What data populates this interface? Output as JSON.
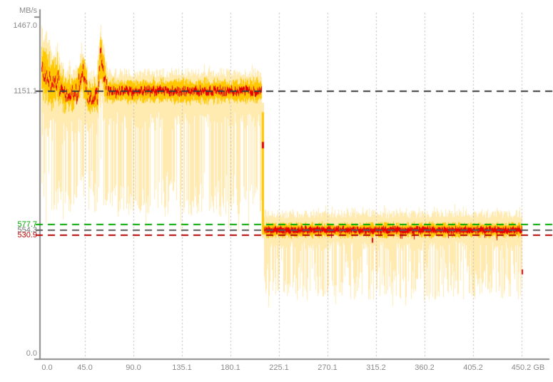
{
  "chart": {
    "ylabel": "MB/s",
    "y_axis_labels": [
      {
        "text": "1467.0",
        "value": 1467.0,
        "color": "#8a8a8a"
      },
      {
        "text": "1151.1",
        "value": 1151.1,
        "color": "#8a8a8a"
      },
      {
        "text": "577.7",
        "value": 577.7,
        "color": "#00a800"
      },
      {
        "text": "554.3",
        "value": 554.3,
        "color": "#707070"
      },
      {
        "text": "530.9",
        "value": 530.9,
        "color": "#c00000"
      },
      {
        "text": "0.0",
        "value": 0.0,
        "color": "#8a8a8a"
      }
    ],
    "x_axis_labels": [
      "0.0",
      "45.0",
      "90.0",
      "135.1",
      "180.1",
      "225.1",
      "270.1",
      "315.2",
      "360.2",
      "405.2",
      "450.2 GB"
    ]
  },
  "chart_data": {
    "type": "area",
    "ylabel": "MB/s",
    "x_unit": "GB",
    "x_range": [
      0,
      450.2
    ],
    "y_range": [
      0,
      1467.0
    ],
    "x_ticks": [
      0.0,
      45.0,
      90.0,
      135.1,
      180.1,
      225.1,
      270.1,
      315.2,
      360.2,
      405.2,
      450.2
    ],
    "grid": "vertical-dotted",
    "reference_lines": [
      {
        "value": 1151.1,
        "color": "#3c3c3c",
        "style": "dashed"
      },
      {
        "value": 577.7,
        "color": "#00a800",
        "style": "dashed"
      },
      {
        "value": 554.3,
        "color": "#5a5a5a",
        "style": "dashed"
      },
      {
        "value": 530.9,
        "color": "#b40000",
        "style": "dashed"
      }
    ],
    "colors": {
      "envelope": "#ffeab0",
      "band": "#ffc800",
      "spread": "#ff9800",
      "average": "#e60000",
      "axis": "#8c8c8c",
      "grid": "#bdbdbd",
      "text": "#8a8a8a",
      "background": "#ffffff"
    },
    "segments": [
      {
        "gb0": 4.6,
        "gb1": 13.9,
        "avg0": 1248,
        "avg1": 1182,
        "jit": 46,
        "band": 88,
        "top": 160,
        "topSpike": 70,
        "topSpikeP": 0.3,
        "bot": 225,
        "spikeP": 0.55,
        "spikeMin": 330,
        "spikeMax": 610,
        "rareP": 0.05,
        "rareMin": 610,
        "rareMax": 680,
        "dipP": 0.05,
        "dip": 60
      },
      {
        "gb0": 13.9,
        "gb1": 19.2,
        "avg0": 1175,
        "avg1": 1205,
        "jit": 42,
        "band": 78,
        "top": 120,
        "topSpike": 45,
        "topSpikeP": 0.22,
        "bot": 205,
        "spikeP": 0.5,
        "spikeMin": 300,
        "spikeMax": 560,
        "rareP": 0.02,
        "rareMin": 580,
        "rareMax": 640,
        "dipP": 0.04,
        "dip": 50
      },
      {
        "gb0": 19.2,
        "gb1": 24.5,
        "avg0": 1198,
        "avg1": 1138,
        "jit": 40,
        "band": 72,
        "top": 112,
        "topSpike": 40,
        "topSpikeP": 0.2,
        "bot": 195,
        "spikeP": 0.5,
        "spikeMin": 300,
        "spikeMax": 545,
        "rareP": 0.02,
        "rareMin": 570,
        "rareMax": 620,
        "dipP": 0.04,
        "dip": 50
      },
      {
        "gb0": 24.5,
        "gb1": 31.1,
        "avg0": 1132,
        "avg1": 1142,
        "jit": 26,
        "band": 56,
        "top": 100,
        "topSpike": 32,
        "topSpikeP": 0.16,
        "bot": 165,
        "spikeP": 0.55,
        "spikeMin": 300,
        "spikeMax": 520,
        "rareP": 0.01,
        "rareMin": 560,
        "rareMax": 600,
        "dipP": 0.03,
        "dip": 40
      },
      {
        "gb0": 31.1,
        "gb1": 37.7,
        "avg0": 1140,
        "avg1": 1148,
        "jit": 26,
        "band": 56,
        "top": 100,
        "topSpike": 32,
        "topSpikeP": 0.16,
        "bot": 165,
        "spikeP": 0.55,
        "spikeMin": 300,
        "spikeMax": 520,
        "rareP": 0.01,
        "rareMin": 560,
        "rareMax": 600,
        "dipP": 0.03,
        "dip": 40
      },
      {
        "gb0": 37.7,
        "gb1": 42.4,
        "avg0": 1152,
        "avg1": 1238,
        "jit": 36,
        "band": 66,
        "top": 92,
        "topSpike": 30,
        "topSpikeP": 0.16,
        "bot": 175,
        "spikeP": 0.5,
        "spikeMin": 300,
        "spikeMax": 520,
        "rareP": 0.01,
        "rareMin": 560,
        "rareMax": 600,
        "dipP": 0.03,
        "dip": 40
      },
      {
        "gb0": 42.4,
        "gb1": 47.0,
        "avg0": 1238,
        "avg1": 1148,
        "jit": 36,
        "band": 66,
        "top": 92,
        "topSpike": 30,
        "topSpikeP": 0.16,
        "bot": 175,
        "spikeP": 0.5,
        "spikeMin": 300,
        "spikeMax": 520,
        "rareP": 0.01,
        "rareMin": 560,
        "rareMax": 600,
        "dipP": 0.03,
        "dip": 40
      },
      {
        "gb0": 47.0,
        "gb1": 56.3,
        "avg0": 1126,
        "avg1": 1126,
        "jit": 26,
        "band": 56,
        "top": 96,
        "topSpike": 26,
        "topSpikeP": 0.15,
        "bot": 160,
        "spikeP": 0.5,
        "spikeMin": 280,
        "spikeMax": 500,
        "rareP": 0.01,
        "rareMin": 540,
        "rareMax": 580,
        "dipP": 0.03,
        "dip": 40
      },
      {
        "gb0": 56.3,
        "gb1": 59.6,
        "avg0": 1160,
        "avg1": 1312,
        "jit": 42,
        "band": 72,
        "top": 105,
        "topSpike": 35,
        "topSpikeP": 0.2,
        "bot": 185,
        "spikeP": 0.5,
        "spikeMin": 300,
        "spikeMax": 560,
        "rareP": 0.03,
        "rareMin": 580,
        "rareMax": 640,
        "dipP": 0.03,
        "dip": 40
      },
      {
        "gb0": 59.6,
        "gb1": 62.9,
        "avg0": 1300,
        "avg1": 1205,
        "jit": 42,
        "band": 72,
        "top": 108,
        "topSpike": 35,
        "topSpikeP": 0.2,
        "bot": 185,
        "spikeP": 0.55,
        "spikeMin": 320,
        "spikeMax": 600,
        "rareP": 0.09,
        "rareMin": 600,
        "rareMax": 680,
        "dipP": 0.03,
        "dip": 40
      },
      {
        "gb0": 62.9,
        "gb1": 65.5,
        "avg0": 1198,
        "avg1": 1152,
        "jit": 32,
        "band": 60,
        "top": 100,
        "topSpike": 26,
        "topSpikeP": 0.2,
        "bot": 172,
        "spikeP": 0.5,
        "spikeMin": 300,
        "spikeMax": 540,
        "rareP": 0.02,
        "rareMin": 560,
        "rareMax": 620,
        "dipP": 0.03,
        "dip": 40
      },
      {
        "gb0": 65.5,
        "gb1": 209.2,
        "avg0": 1151,
        "avg1": 1151,
        "jit": 13,
        "band": 42,
        "top": 82,
        "topSpike": 20,
        "topSpikeP": 0.13,
        "bot": 130,
        "spikeP": 0.62,
        "spikeMin": 340,
        "spikeMax": 540,
        "rareP": 0.02,
        "rareMin": 560,
        "rareMax": 640,
        "dipP": 0.02,
        "dip": 40
      },
      {
        "gb0": 210.6,
        "gb1": 450.2,
        "avg0": 554,
        "avg1": 554,
        "jit": 6,
        "band": 26,
        "top": 72,
        "topSpike": 26,
        "topSpikeP": 0.3,
        "bot": 70,
        "spikeP": 0.6,
        "spikeMin": 90,
        "spikeMax": 300,
        "rareP": 0.02,
        "rareMin": 300,
        "rareMax": 335,
        "dipP": 0.02,
        "dip": 45
      }
    ],
    "transition": {
      "gb0": 209.2,
      "gb1": 210.6,
      "envelope": [
        520,
        1100
      ],
      "band": [
        535,
        1060
      ],
      "average": 920
    },
    "red_blips": [
      {
        "gb": 311,
        "value": 512
      },
      {
        "gb": 450,
        "value": 376
      }
    ]
  }
}
